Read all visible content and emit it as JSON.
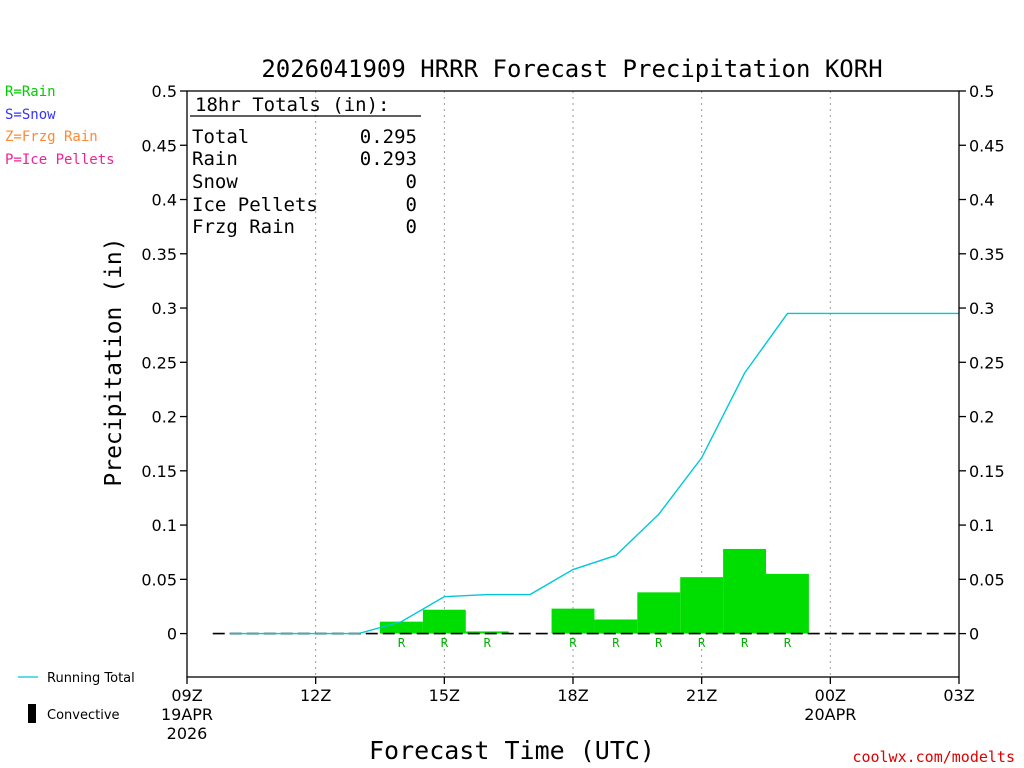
{
  "chart_data": {
    "type": "bar",
    "title": "2026041909 HRRR Forecast Precipitation KORH",
    "xlabel": "Forecast Time (UTC)",
    "ylabel": "Precipitation (in)",
    "ylim": [
      -0.04,
      0.5
    ],
    "yticks": [
      0,
      0.05,
      0.1,
      0.15,
      0.2,
      0.25,
      0.3,
      0.35,
      0.4,
      0.45,
      0.5
    ],
    "ytick_labels": [
      "0",
      "0.05",
      "0.1",
      "0.15",
      "0.2",
      "0.25",
      "0.3",
      "0.35",
      "0.4",
      "0.45",
      "0.5"
    ],
    "xlim_hours": [
      0,
      18
    ],
    "xticks": [
      {
        "hour": 0,
        "label": "09Z",
        "sub1": "19APR",
        "sub2": "2026"
      },
      {
        "hour": 3,
        "label": "12Z",
        "sub1": "",
        "sub2": ""
      },
      {
        "hour": 6,
        "label": "15Z",
        "sub1": "",
        "sub2": ""
      },
      {
        "hour": 9,
        "label": "18Z",
        "sub1": "",
        "sub2": ""
      },
      {
        "hour": 12,
        "label": "21Z",
        "sub1": "",
        "sub2": ""
      },
      {
        "hour": 15,
        "label": "00Z",
        "sub1": "20APR",
        "sub2": ""
      },
      {
        "hour": 18,
        "label": "03Z",
        "sub1": "",
        "sub2": ""
      }
    ],
    "hourly_bars": [
      {
        "hour": 1,
        "value": 0,
        "type": ""
      },
      {
        "hour": 2,
        "value": 0,
        "type": ""
      },
      {
        "hour": 3,
        "value": 0,
        "type": ""
      },
      {
        "hour": 4,
        "value": 0,
        "type": ""
      },
      {
        "hour": 5,
        "value": 0.011,
        "type": "R"
      },
      {
        "hour": 6,
        "value": 0.022,
        "type": "R"
      },
      {
        "hour": 7,
        "value": 0.002,
        "type": "R"
      },
      {
        "hour": 8,
        "value": 0,
        "type": ""
      },
      {
        "hour": 9,
        "value": 0.023,
        "type": "R"
      },
      {
        "hour": 10,
        "value": 0.013,
        "type": "R"
      },
      {
        "hour": 11,
        "value": 0.038,
        "type": "R"
      },
      {
        "hour": 12,
        "value": 0.052,
        "type": "R"
      },
      {
        "hour": 13,
        "value": 0.078,
        "type": "R"
      },
      {
        "hour": 14,
        "value": 0.055,
        "type": "R"
      }
    ],
    "running_total": {
      "name": "Running Total",
      "x": [
        1,
        2,
        3,
        4,
        5,
        6,
        7,
        8,
        9,
        10,
        11,
        12,
        13,
        14,
        15,
        16,
        17,
        18
      ],
      "y": [
        0,
        0,
        0,
        0,
        0.011,
        0.034,
        0.036,
        0.036,
        0.059,
        0.072,
        0.11,
        0.162,
        0.24,
        0.295,
        0.295,
        0.295,
        0.295,
        0.295
      ]
    },
    "totals_box": {
      "header": "18hr Totals (in):",
      "rows": [
        {
          "label": "Total",
          "value": "0.295"
        },
        {
          "label": "Rain",
          "value": "0.293"
        },
        {
          "label": "Snow",
          "value": "0"
        },
        {
          "label": "Ice Pellets",
          "value": "0"
        },
        {
          "label": "Frzg Rain",
          "value": "0"
        }
      ]
    },
    "precip_type_legend": [
      {
        "text": "R=Rain",
        "color": "#00cc00"
      },
      {
        "text": "S=Snow",
        "color": "#3333ff"
      },
      {
        "text": "Z=Frzg Rain",
        "color": "#ff8833"
      },
      {
        "text": "P=Ice Pellets",
        "color": "#ee2299"
      }
    ],
    "legend": {
      "running_total_label": "Running Total",
      "convective_label": "Convective"
    },
    "colors": {
      "rain_bar": "#00dd00",
      "running_total_line": "#00c8d8",
      "rain_letter": "#00b000",
      "credit": "#e00000"
    },
    "credit": "coolwx.com/modelts"
  }
}
